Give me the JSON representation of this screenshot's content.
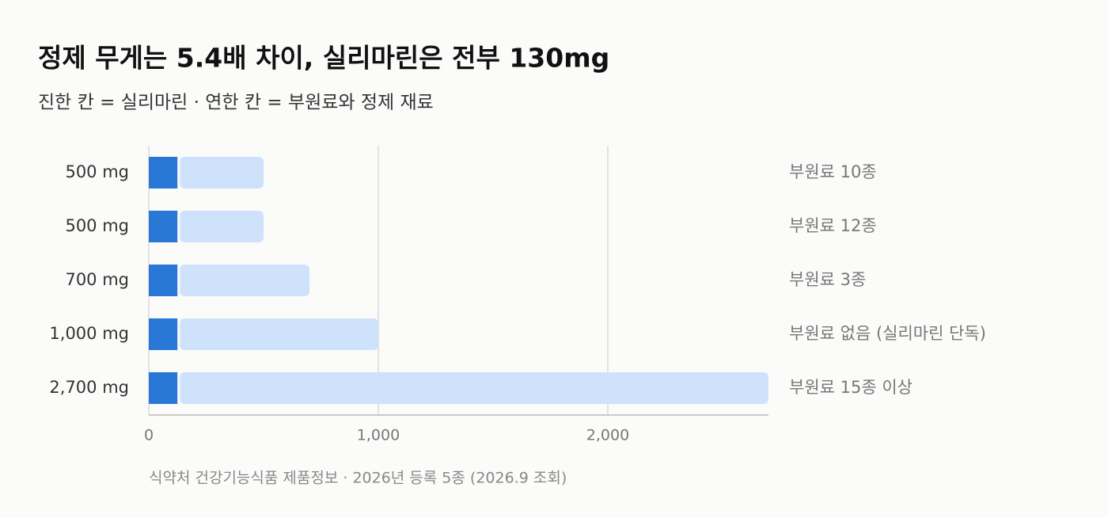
{
  "chart_data": {
    "type": "stacked-bar-horizontal",
    "title": "정제 무게는 5.4배 차이, 실리마린은 전부 130mg",
    "subtitle": "진한 칸 = 실리마린 · 연한 칸 = 부원료와 정제 재료",
    "categories": [
      "500 mg",
      "500 mg",
      "700 mg",
      "1,000 mg",
      "2,700 mg"
    ],
    "series": [
      {
        "color": "#2a78d6",
        "values": [
          130,
          130,
          130,
          130,
          130
        ]
      },
      {
        "color": "#cfe2fb",
        "values": [
          370,
          370,
          570,
          870,
          2570
        ]
      }
    ],
    "annotations": [
      "부원료 10종",
      "부원료 12종",
      "부원료 3종",
      "부원료 없음 (실리마린 단독)",
      "부원료 15종 이상"
    ],
    "xlim": [
      0,
      2700
    ],
    "xticks": [
      0,
      {
        "value": 1000,
        "label": "1,000"
      },
      {
        "value": 2000,
        "label": "2,000"
      }
    ],
    "grid": true,
    "source": "식약처 건강기능식품 제품정보 · 2026년 등록 5종 (2026.9 조회)"
  }
}
